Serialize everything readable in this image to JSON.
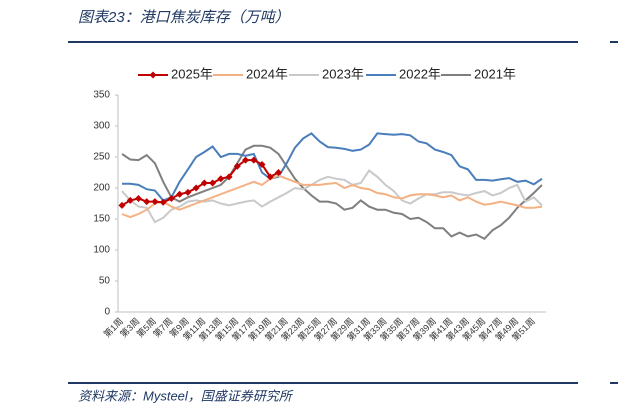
{
  "chart_data": {
    "type": "line",
    "title": "图表23：港口焦炭库存（万吨）",
    "source": "资料来源：Mysteel，国盛证券研究所",
    "categories": [
      "第1周",
      null,
      "第3周",
      null,
      "第5周",
      null,
      "第7周",
      null,
      "第9周",
      null,
      "第11周",
      null,
      "第13周",
      null,
      "第15周",
      null,
      "第17周",
      null,
      "第19周",
      null,
      "第21周",
      null,
      "第23周",
      null,
      "第25周",
      null,
      "第27周",
      null,
      "第29周",
      null,
      "第31周",
      null,
      "第33周",
      null,
      "第35周",
      null,
      "第37周",
      null,
      "第39周",
      null,
      "第41周",
      null,
      "第43周",
      null,
      "第45周",
      null,
      "第47周",
      null,
      "第49周",
      null,
      "第51周",
      null
    ],
    "ylim": [
      0,
      350
    ],
    "yticks": [
      0,
      50,
      100,
      150,
      200,
      250,
      300,
      350
    ],
    "series": [
      {
        "name": "2025年",
        "color": "#c00000",
        "markers": true,
        "values": [
          172,
          180,
          183,
          178,
          178,
          177,
          183,
          190,
          193,
          200,
          208,
          208,
          215,
          218,
          235,
          245,
          245,
          238,
          218,
          225,
          null,
          null,
          null,
          null,
          null,
          null,
          null,
          null,
          null,
          null,
          null,
          null,
          null,
          null,
          null,
          null,
          null,
          null,
          null,
          null,
          null,
          null,
          null,
          null,
          null,
          null,
          null,
          null,
          null,
          null,
          null,
          null
        ]
      },
      {
        "name": "2024年",
        "color": "#f4b183",
        "values": [
          158,
          153,
          158,
          165,
          175,
          178,
          170,
          165,
          170,
          175,
          180,
          185,
          190,
          195,
          200,
          205,
          210,
          205,
          215,
          220,
          215,
          210,
          205,
          205,
          205,
          207,
          208,
          200,
          205,
          200,
          198,
          192,
          190,
          185,
          183,
          188,
          190,
          190,
          188,
          185,
          188,
          180,
          185,
          178,
          173,
          175,
          178,
          175,
          172,
          168,
          168,
          170
        ]
      },
      {
        "name": "2023年",
        "color": "#c9c9c9",
        "values": [
          195,
          180,
          170,
          168,
          145,
          152,
          165,
          170,
          178,
          180,
          178,
          180,
          175,
          172,
          175,
          178,
          180,
          170,
          178,
          185,
          192,
          200,
          198,
          205,
          213,
          218,
          215,
          213,
          205,
          208,
          228,
          218,
          205,
          195,
          180,
          175,
          183,
          190,
          190,
          193,
          193,
          190,
          188,
          192,
          195,
          188,
          192,
          200,
          205,
          178,
          185,
          172
        ]
      },
      {
        "name": "2022年",
        "color": "#4a7ebb",
        "values": [
          207,
          207,
          205,
          198,
          196,
          180,
          185,
          210,
          230,
          250,
          258,
          267,
          250,
          255,
          255,
          252,
          255,
          225,
          215,
          218,
          240,
          265,
          280,
          288,
          275,
          266,
          265,
          263,
          260,
          262,
          270,
          288,
          287,
          286,
          287,
          285,
          275,
          272,
          262,
          258,
          253,
          235,
          230,
          213,
          213,
          212,
          214,
          216,
          210,
          212,
          206,
          215
        ]
      },
      {
        "name": "2021年",
        "color": "#7f7f7f",
        "values": [
          255,
          246,
          245,
          253,
          240,
          210,
          185,
          178,
          185,
          190,
          195,
          200,
          205,
          218,
          240,
          262,
          268,
          268,
          265,
          255,
          235,
          215,
          200,
          188,
          178,
          178,
          175,
          165,
          168,
          180,
          170,
          165,
          165,
          160,
          158,
          150,
          152,
          145,
          135,
          135,
          122,
          128,
          122,
          125,
          118,
          132,
          140,
          152,
          168,
          180,
          192,
          205
        ]
      }
    ]
  }
}
